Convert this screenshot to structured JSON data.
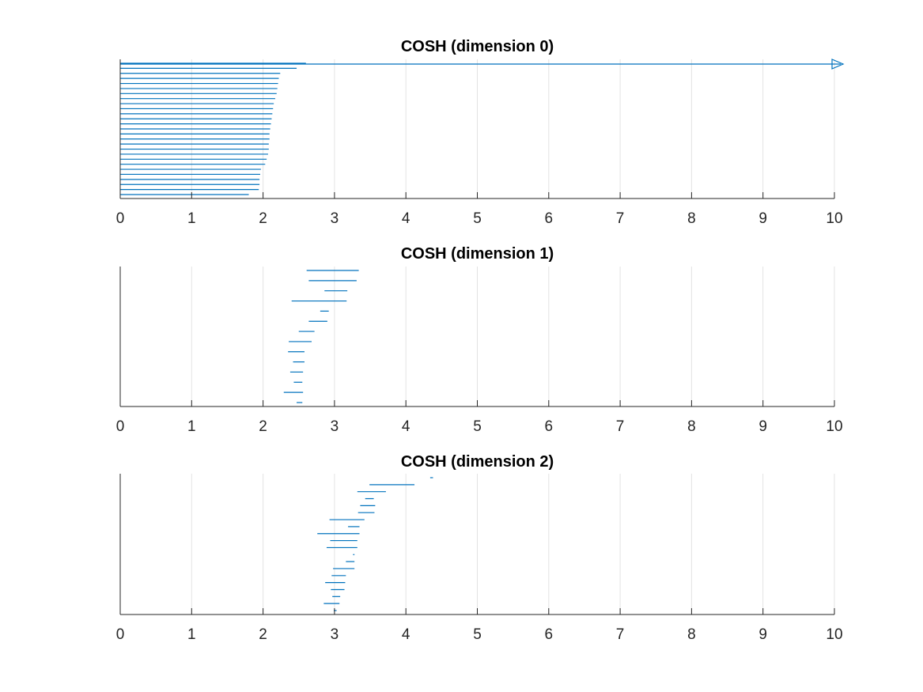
{
  "chart_data": [
    {
      "type": "barcode",
      "title": "COSH (dimension 0)",
      "xlim": [
        0,
        10
      ],
      "xticks": [
        0,
        1,
        2,
        3,
        4,
        5,
        6,
        7,
        8,
        9,
        10
      ],
      "grid": "vertical",
      "color": "#0072BD",
      "infinite_bars_from": [
        0
      ],
      "bars": [
        [
          0,
          2.6
        ],
        [
          0,
          2.47
        ],
        [
          0,
          2.24
        ],
        [
          0,
          2.22
        ],
        [
          0,
          2.21
        ],
        [
          0,
          2.2
        ],
        [
          0,
          2.19
        ],
        [
          0,
          2.17
        ],
        [
          0,
          2.15
        ],
        [
          0,
          2.14
        ],
        [
          0,
          2.13
        ],
        [
          0,
          2.12
        ],
        [
          0,
          2.11
        ],
        [
          0,
          2.1
        ],
        [
          0,
          2.09
        ],
        [
          0,
          2.09
        ],
        [
          0,
          2.08
        ],
        [
          0,
          2.08
        ],
        [
          0,
          2.07
        ],
        [
          0,
          2.05
        ],
        [
          0,
          2.03
        ],
        [
          0,
          1.97
        ],
        [
          0,
          1.96
        ],
        [
          0,
          1.95
        ],
        [
          0,
          1.95
        ],
        [
          0,
          1.94
        ],
        [
          0,
          1.8
        ]
      ]
    },
    {
      "type": "barcode",
      "title": "COSH (dimension 1)",
      "xlim": [
        0,
        10
      ],
      "xticks": [
        0,
        1,
        2,
        3,
        4,
        5,
        6,
        7,
        8,
        9,
        10
      ],
      "grid": "vertical",
      "color": "#0072BD",
      "infinite_bars_from": [],
      "bars": [
        [
          2.61,
          3.34
        ],
        [
          2.64,
          3.31
        ],
        [
          2.86,
          3.18
        ],
        [
          2.4,
          3.17
        ],
        [
          2.8,
          2.92
        ],
        [
          2.64,
          2.9
        ],
        [
          2.5,
          2.72
        ],
        [
          2.36,
          2.68
        ],
        [
          2.35,
          2.58
        ],
        [
          2.42,
          2.58
        ],
        [
          2.38,
          2.56
        ],
        [
          2.43,
          2.55
        ],
        [
          2.29,
          2.56
        ],
        [
          2.47,
          2.55
        ]
      ]
    },
    {
      "type": "barcode",
      "title": "COSH (dimension 2)",
      "xlim": [
        0,
        10
      ],
      "xticks": [
        0,
        1,
        2,
        3,
        4,
        5,
        6,
        7,
        8,
        9,
        10
      ],
      "grid": "vertical",
      "color": "#0072BD",
      "infinite_bars_from": [],
      "bars": [
        [
          4.34,
          4.38
        ],
        [
          3.49,
          4.12
        ],
        [
          3.32,
          3.72
        ],
        [
          3.43,
          3.55
        ],
        [
          3.36,
          3.57
        ],
        [
          3.33,
          3.56
        ],
        [
          2.93,
          3.42
        ],
        [
          3.19,
          3.35
        ],
        [
          2.76,
          3.35
        ],
        [
          2.94,
          3.32
        ],
        [
          2.89,
          3.32
        ],
        [
          3.26,
          3.28
        ],
        [
          3.16,
          3.28
        ],
        [
          2.98,
          3.28
        ],
        [
          2.96,
          3.16
        ],
        [
          2.87,
          3.15
        ],
        [
          2.95,
          3.14
        ],
        [
          2.97,
          3.08
        ],
        [
          2.85,
          3.07
        ],
        [
          2.99,
          3.03
        ]
      ]
    }
  ]
}
